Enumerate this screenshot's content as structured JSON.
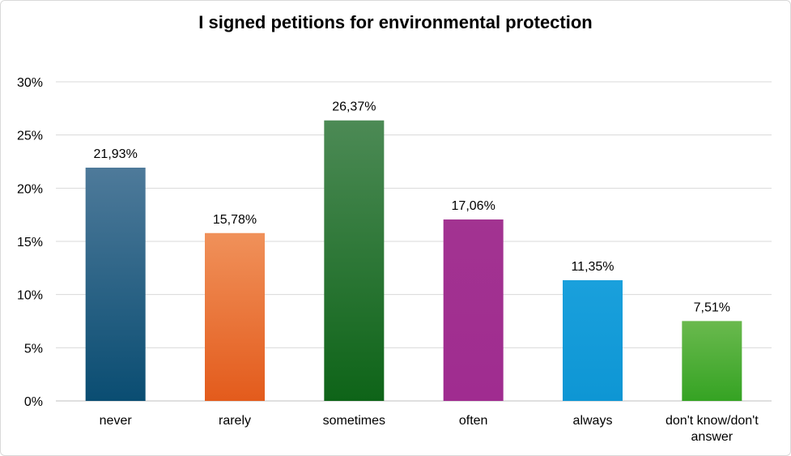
{
  "chart_data": {
    "type": "bar",
    "title": "I signed petitions for environmental protection",
    "xlabel": "",
    "ylabel": "",
    "ylim": [
      0,
      30
    ],
    "y_ticks": [
      "0%",
      "5%",
      "10%",
      "15%",
      "20%",
      "25%",
      "30%"
    ],
    "grid": true,
    "legend": "none",
    "categories": [
      [
        "never"
      ],
      [
        "rarely"
      ],
      [
        "sometimes"
      ],
      [
        "often"
      ],
      [
        "always"
      ],
      [
        "don't know/don't",
        "answer"
      ]
    ],
    "values": [
      21.93,
      15.78,
      26.37,
      17.06,
      11.35,
      7.51
    ],
    "data_labels": [
      "21,93%",
      "15,78%",
      "26,37%",
      "17,06%",
      "11,35%",
      "7,51%"
    ],
    "colors": [
      [
        "#4e7a9a",
        "#0a4d72"
      ],
      [
        "#f0915a",
        "#e35b1c"
      ],
      [
        "#4c8a55",
        "#0e6418"
      ],
      [
        "#a23391",
        "#a02c90"
      ],
      [
        "#1aa0dc",
        "#0e96d4"
      ],
      [
        "#6ab94e",
        "#35a323"
      ]
    ]
  }
}
